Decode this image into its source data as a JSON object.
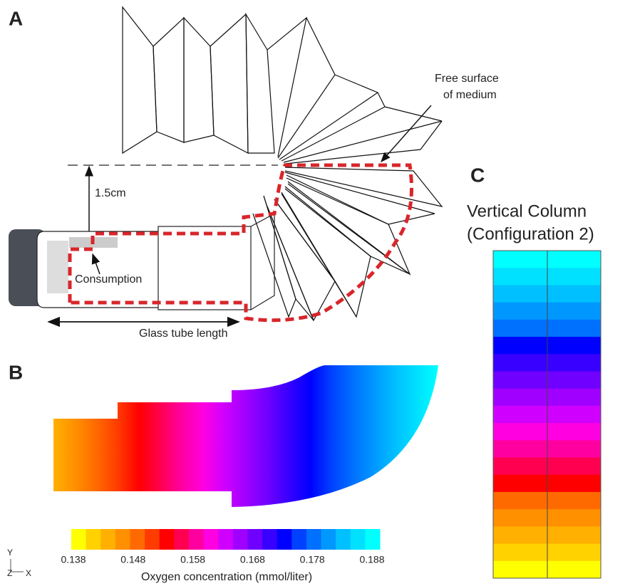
{
  "panels": {
    "a": "A",
    "b": "B",
    "c": "C"
  },
  "panel_a": {
    "free_surface": [
      "Free surface",
      "of medium"
    ],
    "height": "1.5cm",
    "consumption": "Consumption",
    "tube_length": "Glass tube length"
  },
  "panel_b": {
    "colorbar": {
      "ticks": [
        0.138,
        0.148,
        0.158,
        0.168,
        0.178,
        0.188
      ],
      "label": "Oxygen concentration (mmol/liter)",
      "colors": [
        "#ffff00",
        "#ffd200",
        "#ffb000",
        "#ff9000",
        "#ff6a00",
        "#ff3c00",
        "#ff0000",
        "#ff0050",
        "#ff00a0",
        "#ff00e0",
        "#d000ff",
        "#a000ff",
        "#7000ff",
        "#3800ff",
        "#0000ff",
        "#0040ff",
        "#0070ff",
        "#0098ff",
        "#00c0ff",
        "#00e0ff",
        "#00ffff"
      ]
    },
    "axes": {
      "y": "Y",
      "z": "Z",
      "x": "X"
    }
  },
  "panel_c": {
    "title": [
      "Vertical Column",
      "(Configuration 2)"
    ]
  }
}
